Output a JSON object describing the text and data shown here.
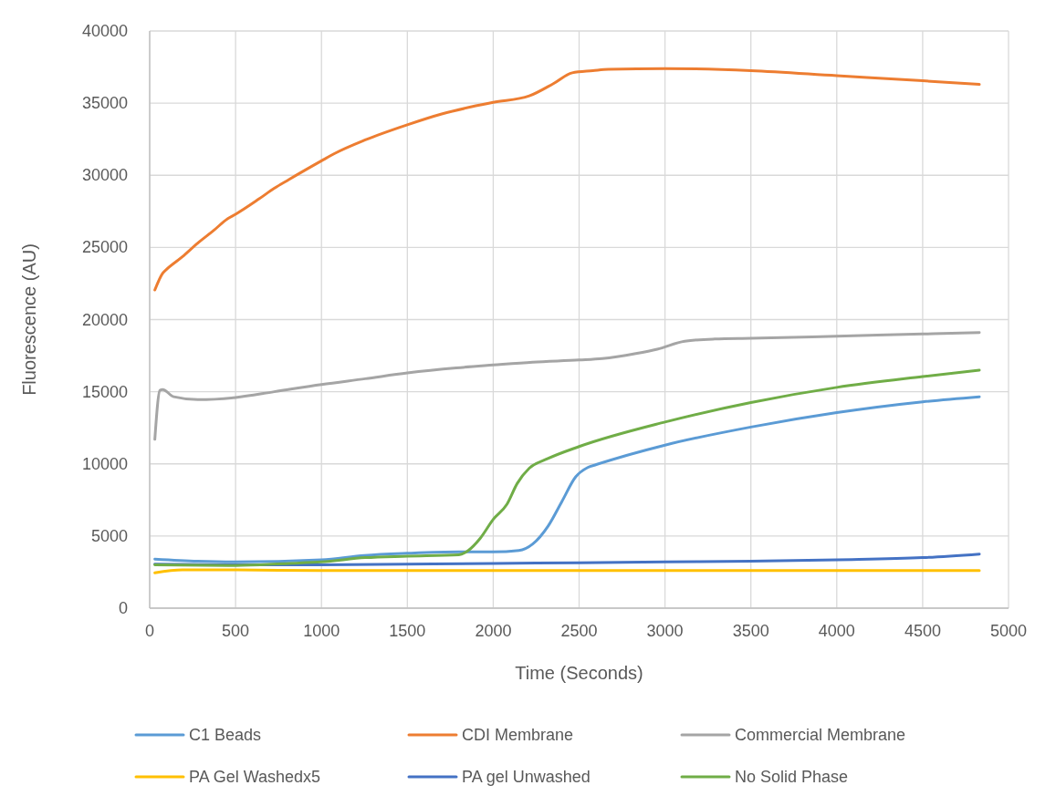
{
  "chart_data": {
    "type": "line",
    "xlabel": "Time (Seconds)",
    "ylabel": "Fluorescence (AU)",
    "xlim": [
      0,
      5000
    ],
    "ylim": [
      0,
      40000
    ],
    "xticks": [
      0,
      500,
      1000,
      1500,
      2000,
      2500,
      3000,
      3500,
      4000,
      4500,
      5000
    ],
    "yticks": [
      0,
      5000,
      10000,
      15000,
      20000,
      25000,
      30000,
      35000,
      40000
    ],
    "grid": true,
    "legend": "bottom",
    "series": [
      {
        "name": "C1 Beads",
        "color": "#5b9bd5",
        "x": [
          30,
          280,
          500,
          1000,
          1250,
          1500,
          1800,
          2000,
          2150,
          2230,
          2320,
          2400,
          2480,
          2550,
          2600,
          3000,
          3500,
          4000,
          4500,
          4830
        ],
        "values": [
          3400,
          3250,
          3200,
          3350,
          3650,
          3800,
          3900,
          3900,
          4000,
          4450,
          5700,
          7400,
          9100,
          9750,
          9950,
          11300,
          12550,
          13550,
          14300,
          14650
        ]
      },
      {
        "name": "CDI Membrane",
        "color": "#ed7d31",
        "x": [
          30,
          75,
          100,
          190,
          280,
          370,
          455,
          500,
          635,
          725,
          810,
          1000,
          1075,
          1255,
          1500,
          1700,
          1875,
          2000,
          2210,
          2350,
          2460,
          2580,
          2670,
          3000,
          3500,
          4000,
          4500,
          4830
        ],
        "values": [
          22050,
          23200,
          23500,
          24350,
          25300,
          26150,
          27000,
          27300,
          28350,
          29100,
          29700,
          31000,
          31500,
          32450,
          33500,
          34250,
          34750,
          35050,
          35500,
          36350,
          37100,
          37250,
          37350,
          37400,
          37250,
          36900,
          36550,
          36300
        ]
      },
      {
        "name": "Commercial Membrane",
        "color": "#a5a5a5",
        "x": [
          30,
          60,
          75,
          140,
          280,
          500,
          725,
          1000,
          1255,
          1500,
          1785,
          2000,
          2230,
          2500,
          2635,
          2830,
          2955,
          3115,
          3290,
          3500,
          4000,
          4500,
          4830
        ],
        "values": [
          11700,
          15100,
          15150,
          14650,
          14450,
          14600,
          15000,
          15500,
          15900,
          16300,
          16650,
          16850,
          17050,
          17200,
          17300,
          17650,
          17950,
          18500,
          18650,
          18700,
          18850,
          19000,
          19100
        ]
      },
      {
        "name": "PA Gel Washedx5",
        "color": "#ffc000",
        "x": [
          30,
          190,
          500,
          1000,
          2000,
          3000,
          4000,
          4830
        ],
        "values": [
          2450,
          2650,
          2650,
          2600,
          2600,
          2600,
          2600,
          2600
        ]
      },
      {
        "name": "PA gel Unwashed",
        "color": "#4472c4",
        "x": [
          30,
          500,
          1000,
          2000,
          2500,
          3000,
          3500,
          4000,
          4500,
          4830
        ],
        "values": [
          3050,
          3000,
          3000,
          3100,
          3150,
          3200,
          3250,
          3350,
          3500,
          3750
        ]
      },
      {
        "name": "No Solid Phase",
        "color": "#70ad47",
        "x": [
          30,
          500,
          810,
          1000,
          1255,
          1500,
          1800,
          1855,
          1925,
          2000,
          2080,
          2140,
          2210,
          2315,
          2500,
          3000,
          3500,
          4000,
          4500,
          4830
        ],
        "values": [
          3000,
          2950,
          3100,
          3200,
          3500,
          3600,
          3700,
          4000,
          4850,
          6150,
          7200,
          8650,
          9700,
          10350,
          11200,
          12900,
          14250,
          15300,
          16050,
          16500
        ]
      }
    ]
  }
}
